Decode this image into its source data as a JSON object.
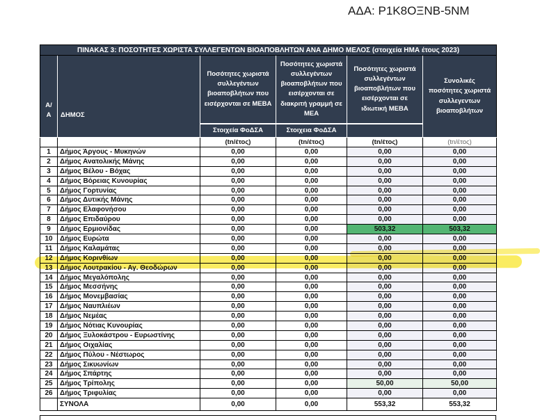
{
  "ada": "ΑΔΑ: Ρ1Κ8ΟΞΝΒ-5ΝΜ",
  "table": {
    "title": "ΠΙΝΑΚΑΣ 3: ΠΟΣΟΤΗΤΕΣ ΧΩΡΙΣΤΑ ΣΥΛΛΕΓΕΝΤΩΝ ΒΙΟΑΠΟΒΛΗΤΩΝ ΑΝΑ ΔΗΜΟ ΜΕΛΟΣ (στοιχεία ΗΜΑ  έτους 2023)",
    "headers": {
      "aa": "Α/Α",
      "dimos": "ΔΗΜΟΣ",
      "col_meva": "Ποσότητες χωριστά συλλεγέντων βιοαποβλήτων που εισέρχονται σε ΜΕΒΑ",
      "col_mea": "Ποσότητες χωριστά συλλεγέντων βιοαποβλήτων που εισέρχονται σε διακριτή γραμμή σε ΜΕΑ",
      "col_private_meva": "Ποσότητες χωριστά συλλεγέντων βιοαποβλήτων που εισέρχονται σε ιδιωτική ΜΕΒΑ",
      "col_total": "Συνολικές ποσότητες χωριστά συλλεγεντων βιοαποβλήτων",
      "sub_meva": "Στοιχεία ΦοΔΣΑ",
      "sub_mea": "Στοιχεια ΦοΔΣΑ",
      "unit": "(tn/έτος)"
    },
    "rows": [
      {
        "aa": "1",
        "name": "Δήμος Άργους - Μυκηνών",
        "values": [
          "0,00",
          "0,00",
          "0,00",
          "0,00"
        ]
      },
      {
        "aa": "2",
        "name": "Δήμος Ανατολικής Μάνης",
        "values": [
          "0,00",
          "0,00",
          "0,00",
          "0,00"
        ]
      },
      {
        "aa": "3",
        "name": "Δήμος Βέλου - Βόχας",
        "values": [
          "0,00",
          "0,00",
          "0,00",
          "0,00"
        ]
      },
      {
        "aa": "4",
        "name": "Δήμος Βόρειας Κυνουρίας",
        "values": [
          "0,00",
          "0,00",
          "0,00",
          "0,00"
        ]
      },
      {
        "aa": "5",
        "name": "Δήμος Γορτυνίας",
        "values": [
          "0,00",
          "0,00",
          "0,00",
          "0,00"
        ]
      },
      {
        "aa": "6",
        "name": "Δήμος Δυτικής Μάνης",
        "values": [
          "0,00",
          "0,00",
          "0,00",
          "0,00"
        ]
      },
      {
        "aa": "7",
        "name": "Δήμος Ελαφονήσου",
        "values": [
          "0,00",
          "0,00",
          "0,00",
          "0,00"
        ]
      },
      {
        "aa": "8",
        "name": "Δήμος Επιδαύρου",
        "values": [
          "0,00",
          "0,00",
          "0,00",
          "0,00"
        ]
      },
      {
        "aa": "9",
        "name": "Δήμος Ερμιονίδας",
        "values": [
          "0,00",
          "0,00",
          "503,32",
          "503,32"
        ],
        "cell_highlight": "green"
      },
      {
        "aa": "10",
        "name": "Δήμος Ευρώτα",
        "values": [
          "0,00",
          "0,00",
          "0,00",
          "0,00"
        ]
      },
      {
        "aa": "11",
        "name": "Δήμος Καλαμάτας",
        "values": [
          "0,00",
          "0,00",
          "0,00",
          "0,00"
        ]
      },
      {
        "aa": "12",
        "name": "Δήμος Κορινθίων",
        "values": [
          "0,00",
          "0,00",
          "0,00",
          "0,00"
        ]
      },
      {
        "aa": "13",
        "name": "Δήμος Λουτρακίου - Αγ. Θεοδώρων",
        "values": [
          "0,00",
          "0,00",
          "0,00",
          "0,00"
        ],
        "row_highlight": "yellow"
      },
      {
        "aa": "14",
        "name": "Δήμος Μεγαλόπολης",
        "values": [
          "0,00",
          "0,00",
          "0,00",
          "0,00"
        ]
      },
      {
        "aa": "15",
        "name": "Δήμος Μεσσήνης",
        "values": [
          "0,00",
          "0,00",
          "0,00",
          "0,00"
        ]
      },
      {
        "aa": "16",
        "name": "Δήμος Μονεμβασίας",
        "values": [
          "0,00",
          "0,00",
          "0,00",
          "0,00"
        ]
      },
      {
        "aa": "17",
        "name": "Δήμος Ναυπλιέων",
        "values": [
          "0,00",
          "0,00",
          "0,00",
          "0,00"
        ]
      },
      {
        "aa": "18",
        "name": "Δήμος Νεμέας",
        "values": [
          "0,00",
          "0,00",
          "0,00",
          "0,00"
        ]
      },
      {
        "aa": "19",
        "name": "Δήμος Νότιας Κυνουρίας",
        "values": [
          "0,00",
          "0,00",
          "0,00",
          "0,00"
        ]
      },
      {
        "aa": "20",
        "name": "Δήμος Ξυλοκάστρου - Ευρωστίνης",
        "values": [
          "0,00",
          "0,00",
          "0,00",
          "0,00"
        ]
      },
      {
        "aa": "21",
        "name": "Δήμος Οιχαλίας",
        "values": [
          "0,00",
          "0,00",
          "0,00",
          "0,00"
        ]
      },
      {
        "aa": "22",
        "name": "Δήμος Πύλου - Νέστωρος",
        "values": [
          "0,00",
          "0,00",
          "0,00",
          "0,00"
        ]
      },
      {
        "aa": "23",
        "name": "Δήμος Σικυωνίων",
        "values": [
          "0,00",
          "0,00",
          "0,00",
          "0,00"
        ]
      },
      {
        "aa": "24",
        "name": "Δήμος Σπάρτης",
        "values": [
          "0,00",
          "0,00",
          "0,00",
          "0,00"
        ]
      },
      {
        "aa": "25",
        "name": "Δήμος Τρίπολης",
        "values": [
          "0,00",
          "0,00",
          "50,00",
          "50,00"
        ],
        "cell_highlight": "lightgreen"
      },
      {
        "aa": "26",
        "name": "Δήμος Τριφυλίας",
        "values": [
          "0,00",
          "0,00",
          "0,00",
          "0,00"
        ]
      }
    ],
    "totals": {
      "label": "ΣΥΝΟΛΑ",
      "values": [
        "0,00",
        "0,00",
        "553,32",
        "553,32"
      ]
    }
  },
  "colors": {
    "header_bg": "#313d4f",
    "highlight_green": "#53b573",
    "highlight_light_green": "#e8f2e9",
    "column_tint": "#f1f1f8",
    "highlighter_yellow": "#f7e000"
  }
}
